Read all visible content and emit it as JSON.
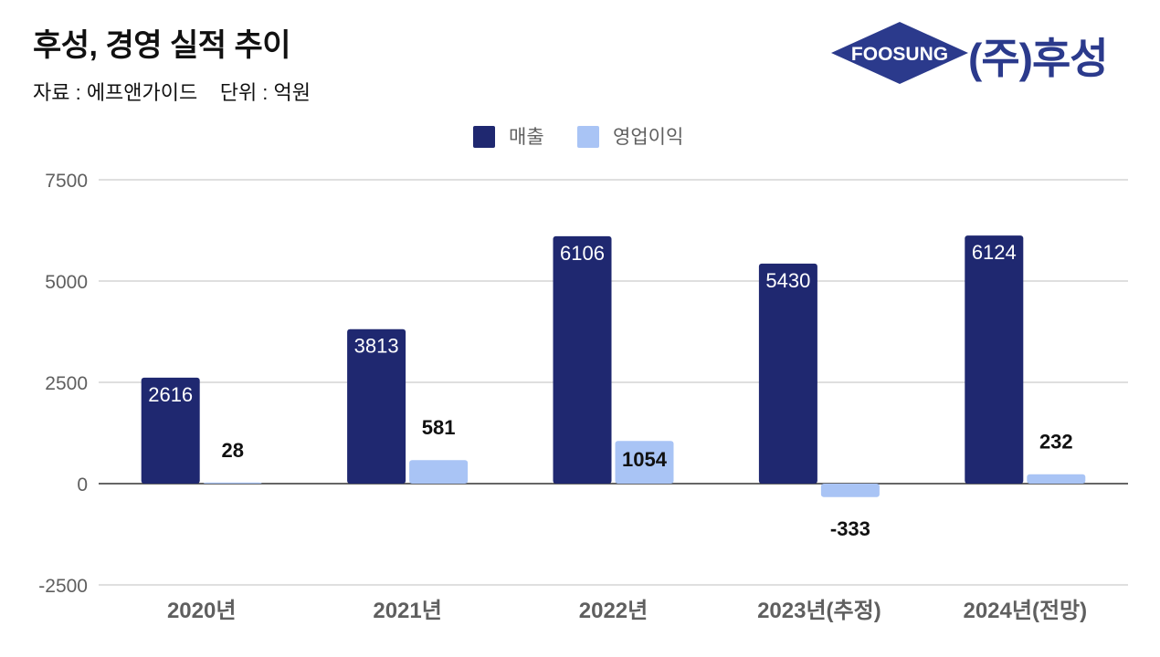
{
  "header": {
    "title": "후성, 경영 실적 추이",
    "subtitle": "자료 : 에프앤가이드    단위 : 억원"
  },
  "logo": {
    "emblem_text": "FOOSUNG",
    "company_name": "(주)후성"
  },
  "colors": {
    "series_sales": "#1f2870",
    "series_profit": "#a9c4f5",
    "grid": "#cccccc",
    "axis_text": "#5f5f5f"
  },
  "chart_data": {
    "type": "bar",
    "categories": [
      "2020년",
      "2021년",
      "2022년",
      "2023년(추정)",
      "2024년(전망)"
    ],
    "series": [
      {
        "name": "매출",
        "values": [
          2616,
          3813,
          6106,
          5430,
          6124
        ]
      },
      {
        "name": "영업이익",
        "values": [
          28,
          581,
          1054,
          -333,
          232
        ]
      }
    ],
    "ylim": [
      -2500,
      7500
    ],
    "yticks": [
      -2500,
      0,
      2500,
      5000,
      7500
    ],
    "legend": "top-center",
    "grid": true
  }
}
